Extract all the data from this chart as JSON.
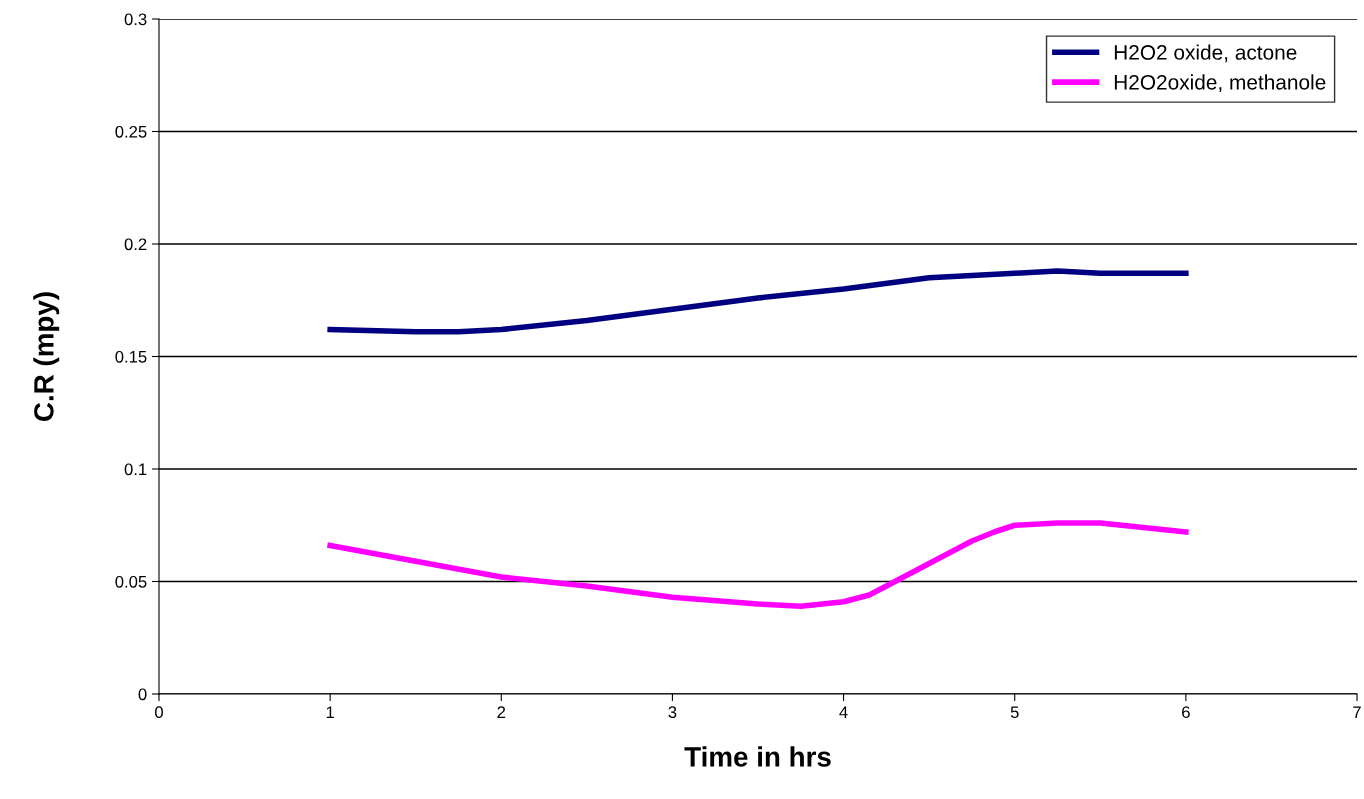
{
  "chart_data": {
    "type": "line",
    "xlabel": "Time in hrs",
    "ylabel": "C.R (mpy)",
    "xlim": [
      0,
      7
    ],
    "xticks": [
      0,
      1,
      2,
      3,
      4,
      5,
      6,
      7
    ],
    "ylim": [
      0,
      0.3
    ],
    "yticks": [
      0,
      0.05,
      0.1,
      0.15,
      0.2,
      0.25,
      0.3
    ],
    "grid": "y",
    "legend": "top right",
    "marker": "none",
    "line_style": "solid",
    "series": [
      {
        "name": "H2O2 oxide, actone",
        "color": "#000080",
        "x": [
          1,
          1.5,
          1.75,
          2,
          2.5,
          3,
          3.5,
          4,
          4.5,
          4.75,
          5,
          5.25,
          5.5,
          6
        ],
        "values": [
          0.162,
          0.161,
          0.161,
          0.162,
          0.166,
          0.171,
          0.176,
          0.18,
          0.185,
          0.186,
          0.187,
          0.188,
          0.187,
          0.187
        ]
      },
      {
        "name": "H2O2oxide, methanole",
        "color": "#ff00ff",
        "x": [
          1,
          2,
          2.5,
          3,
          3.5,
          3.75,
          4,
          4.15,
          4.5,
          4.75,
          4.88,
          5,
          5.25,
          5.5,
          6
        ],
        "values": [
          0.066,
          0.052,
          0.048,
          0.043,
          0.04,
          0.039,
          0.041,
          0.044,
          0.058,
          0.068,
          0.072,
          0.075,
          0.076,
          0.076,
          0.072
        ]
      }
    ]
  }
}
